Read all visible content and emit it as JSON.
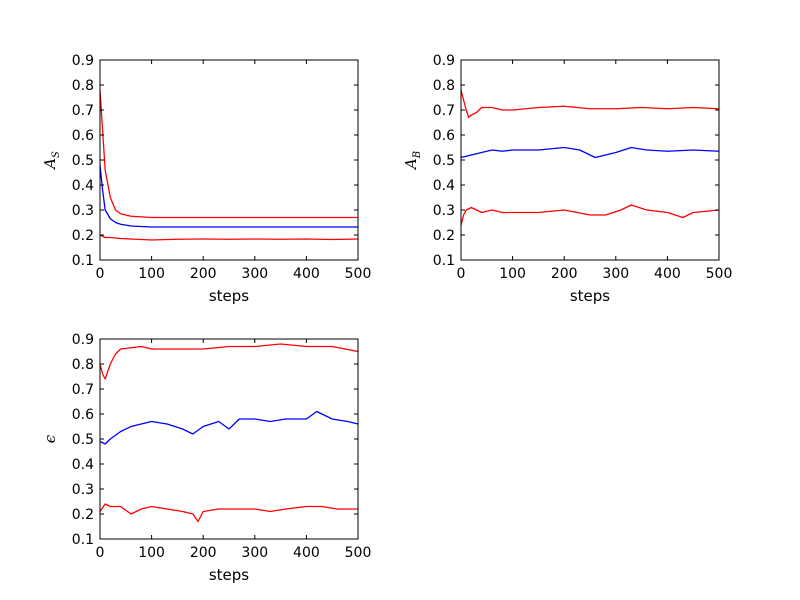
{
  "chart_data": [
    {
      "type": "line",
      "panel": "top-left",
      "xlabel": "steps",
      "ylabel_main": "A",
      "ylabel_sub": "S",
      "xlim": [
        0,
        500
      ],
      "ylim": [
        0.1,
        0.9
      ],
      "xticks": [
        0,
        100,
        200,
        300,
        400,
        500
      ],
      "yticks": [
        0.1,
        0.2,
        0.3,
        0.4,
        0.5,
        0.6,
        0.7,
        0.8,
        0.9
      ],
      "tick_labels_x": [
        "0",
        "100",
        "200",
        "300",
        "400",
        "500"
      ],
      "tick_labels_y": [
        "0.1",
        "0.2",
        "0.3",
        "0.4",
        "0.5",
        "0.6",
        "0.7",
        "0.8",
        "0.9"
      ],
      "grid": false,
      "series": [
        {
          "color": "#ff0000",
          "x": [
            0,
            5,
            10,
            20,
            30,
            40,
            60,
            100,
            150,
            200,
            250,
            300,
            350,
            400,
            450,
            500
          ],
          "y": [
            0.78,
            0.62,
            0.46,
            0.35,
            0.3,
            0.285,
            0.275,
            0.27,
            0.27,
            0.27,
            0.27,
            0.27,
            0.27,
            0.27,
            0.27,
            0.27
          ]
        },
        {
          "color": "#0000ff",
          "x": [
            0,
            5,
            10,
            20,
            30,
            40,
            60,
            100,
            150,
            200,
            250,
            300,
            350,
            400,
            450,
            500
          ],
          "y": [
            0.48,
            0.38,
            0.3,
            0.265,
            0.25,
            0.243,
            0.236,
            0.232,
            0.232,
            0.232,
            0.232,
            0.232,
            0.232,
            0.232,
            0.232,
            0.232
          ]
        },
        {
          "color": "#ff0000",
          "x": [
            0,
            5,
            10,
            20,
            30,
            40,
            60,
            100,
            150,
            200,
            250,
            300,
            350,
            400,
            450,
            500
          ],
          "y": [
            0.2,
            0.195,
            0.19,
            0.19,
            0.188,
            0.186,
            0.184,
            0.18,
            0.183,
            0.184,
            0.183,
            0.184,
            0.183,
            0.184,
            0.182,
            0.184
          ]
        }
      ]
    },
    {
      "type": "line",
      "panel": "top-right",
      "xlabel": "steps",
      "ylabel_main": "A",
      "ylabel_sub": "B",
      "xlim": [
        0,
        500
      ],
      "ylim": [
        0.1,
        0.9
      ],
      "xticks": [
        0,
        100,
        200,
        300,
        400,
        500
      ],
      "yticks": [
        0.1,
        0.2,
        0.3,
        0.4,
        0.5,
        0.6,
        0.7,
        0.8,
        0.9
      ],
      "tick_labels_x": [
        "0",
        "100",
        "200",
        "300",
        "400",
        "500"
      ],
      "tick_labels_y": [
        "0.1",
        "0.2",
        "0.3",
        "0.4",
        "0.5",
        "0.6",
        "0.7",
        "0.8",
        "0.9"
      ],
      "grid": false,
      "series": [
        {
          "color": "#ff0000",
          "x": [
            0,
            5,
            10,
            15,
            20,
            30,
            40,
            60,
            80,
            100,
            150,
            200,
            250,
            300,
            350,
            400,
            450,
            500
          ],
          "y": [
            0.78,
            0.74,
            0.7,
            0.67,
            0.68,
            0.69,
            0.71,
            0.71,
            0.7,
            0.7,
            0.71,
            0.715,
            0.705,
            0.705,
            0.71,
            0.705,
            0.71,
            0.705
          ]
        },
        {
          "color": "#0000ff",
          "x": [
            0,
            20,
            40,
            60,
            80,
            100,
            150,
            200,
            230,
            260,
            300,
            330,
            360,
            400,
            450,
            500
          ],
          "y": [
            0.51,
            0.52,
            0.53,
            0.54,
            0.535,
            0.54,
            0.54,
            0.55,
            0.54,
            0.51,
            0.53,
            0.55,
            0.54,
            0.535,
            0.54,
            0.535
          ]
        },
        {
          "color": "#ff0000",
          "x": [
            0,
            5,
            10,
            20,
            40,
            60,
            80,
            100,
            150,
            200,
            250,
            280,
            310,
            330,
            360,
            400,
            430,
            450,
            500
          ],
          "y": [
            0.24,
            0.28,
            0.3,
            0.31,
            0.29,
            0.3,
            0.29,
            0.29,
            0.29,
            0.3,
            0.28,
            0.28,
            0.3,
            0.32,
            0.3,
            0.29,
            0.27,
            0.29,
            0.3
          ]
        }
      ]
    },
    {
      "type": "line",
      "panel": "bottom-left",
      "xlabel": "steps",
      "ylabel_main": "ϵ",
      "ylabel_sub": "",
      "xlim": [
        0,
        500
      ],
      "ylim": [
        0.1,
        0.9
      ],
      "xticks": [
        0,
        100,
        200,
        300,
        400,
        500
      ],
      "yticks": [
        0.1,
        0.2,
        0.3,
        0.4,
        0.5,
        0.6,
        0.7,
        0.8,
        0.9
      ],
      "tick_labels_x": [
        "0",
        "100",
        "200",
        "300",
        "400",
        "500"
      ],
      "tick_labels_y": [
        "0.1",
        "0.2",
        "0.3",
        "0.4",
        "0.5",
        "0.6",
        "0.7",
        "0.8",
        "0.9"
      ],
      "grid": false,
      "series": [
        {
          "color": "#ff0000",
          "x": [
            0,
            5,
            10,
            20,
            30,
            40,
            60,
            80,
            100,
            150,
            200,
            250,
            300,
            350,
            400,
            450,
            500
          ],
          "y": [
            0.8,
            0.76,
            0.74,
            0.8,
            0.84,
            0.86,
            0.865,
            0.87,
            0.86,
            0.86,
            0.86,
            0.87,
            0.87,
            0.88,
            0.87,
            0.87,
            0.85
          ]
        },
        {
          "color": "#0000ff",
          "x": [
            0,
            10,
            20,
            40,
            60,
            80,
            100,
            130,
            160,
            180,
            200,
            230,
            250,
            270,
            300,
            330,
            360,
            400,
            420,
            450,
            480,
            500
          ],
          "y": [
            0.49,
            0.48,
            0.5,
            0.53,
            0.55,
            0.56,
            0.57,
            0.56,
            0.54,
            0.52,
            0.55,
            0.57,
            0.54,
            0.58,
            0.58,
            0.57,
            0.58,
            0.58,
            0.61,
            0.58,
            0.57,
            0.56
          ]
        },
        {
          "color": "#ff0000",
          "x": [
            0,
            10,
            20,
            40,
            60,
            80,
            100,
            130,
            160,
            180,
            190,
            200,
            230,
            260,
            300,
            330,
            360,
            400,
            430,
            460,
            500
          ],
          "y": [
            0.21,
            0.24,
            0.23,
            0.23,
            0.2,
            0.22,
            0.23,
            0.22,
            0.21,
            0.2,
            0.17,
            0.21,
            0.22,
            0.22,
            0.22,
            0.21,
            0.22,
            0.23,
            0.23,
            0.22,
            0.22
          ]
        }
      ]
    }
  ]
}
